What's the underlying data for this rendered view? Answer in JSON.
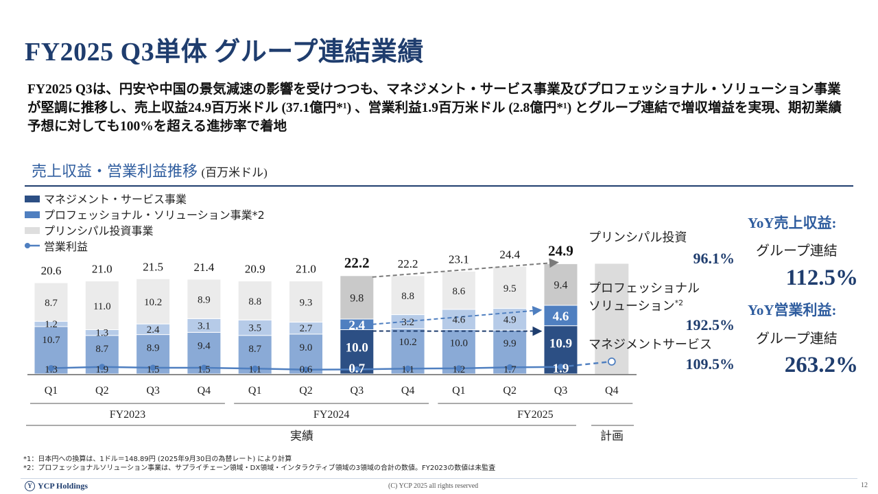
{
  "header": {
    "title": "FY2025 Q3単体 グループ連結業績",
    "summary": "FY2025 Q3は、円安や中国の景気減速の影響を受けつつも、マネジメント・サービス事業及びプロフェッショナル・ソリューション事業が堅調に推移し、売上収益24.9百万米ドル (37.1億円*¹) 、営業利益1.9百万米ドル (2.8億円*¹) とグループ連結で増収増益を実現、期初業績予想に対しても100%を超える進捗率で着地"
  },
  "section": {
    "title": "売上収益・営業利益推移",
    "unit": "(百万米ドル)"
  },
  "colors": {
    "management": "#8aaad6",
    "management_highlight": "#2c4f84",
    "professional": "#b6cbe8",
    "professional_highlight": "#4f7fc0",
    "principal": "#ebebeb",
    "principal_highlight": "#c9c9c9",
    "forecast": "#dcdcdc",
    "op_line": "#4f7fc0",
    "title": "#1f3d6e",
    "accent": "#2e5c9e"
  },
  "chart_data": {
    "type": "bar",
    "stacked": true,
    "title": "売上収益・営業利益推移 (百万米ドル)",
    "legend": [
      "マネジメント・サービス事業",
      "プロフェッショナル・ソリューション事業*2",
      "プリンシパル投資事業",
      "営業利益"
    ],
    "categories": [
      "Q1",
      "Q2",
      "Q3",
      "Q4",
      "Q1",
      "Q2",
      "Q3",
      "Q4",
      "Q1",
      "Q2",
      "Q3",
      "Q4"
    ],
    "years": [
      {
        "label": "FY2023",
        "start": 0,
        "end": 3
      },
      {
        "label": "FY2024",
        "start": 4,
        "end": 7
      },
      {
        "label": "FY2025",
        "start": 8,
        "end": 11
      }
    ],
    "periods": [
      {
        "label": "実績",
        "start": 0,
        "end": 10
      },
      {
        "label": "計画",
        "start": 11,
        "end": 11
      }
    ],
    "series": [
      {
        "name": "マネジメント・サービス事業",
        "values": [
          10.7,
          8.7,
          8.9,
          9.4,
          8.7,
          9.0,
          10.0,
          10.2,
          10.0,
          9.9,
          10.9,
          null
        ]
      },
      {
        "name": "プロフェッショナル・ソリューション事業",
        "values": [
          1.2,
          1.3,
          2.4,
          3.1,
          3.5,
          2.7,
          2.4,
          3.2,
          4.6,
          4.9,
          4.6,
          null
        ]
      },
      {
        "name": "プリンシパル投資事業",
        "values": [
          8.7,
          11.0,
          10.2,
          8.9,
          8.8,
          9.3,
          9.8,
          8.8,
          8.6,
          9.5,
          9.4,
          null
        ]
      }
    ],
    "forecast_total": 24.9,
    "totals": [
      "20.6",
      "21.0",
      "21.5",
      "21.4",
      "20.9",
      "21.0",
      "22.2",
      "22.2",
      "23.1",
      "24.4",
      "24.9",
      null
    ],
    "operating_profit": [
      1.3,
      1.9,
      1.5,
      1.5,
      1.1,
      0.6,
      0.7,
      1.1,
      1.2,
      1.7,
      1.9,
      1.9
    ],
    "highlight_indices": [
      6,
      10
    ],
    "ylim": [
      0,
      26
    ]
  },
  "growth": {
    "principal_label": "プリンシパル投資",
    "principal_value": "96.1%",
    "professional_label_1": "プロフェッショナル",
    "professional_label_2": "ソリューション",
    "professional_sup": "*2",
    "professional_value": "192.5%",
    "management_label": "マネジメントサービス",
    "management_value": "109.5%"
  },
  "yoy": {
    "revenue_title": "YoY売上収益:",
    "revenue_sub": "グループ連結",
    "revenue_value": "112.5%",
    "op_title": "YoY営業利益:",
    "op_sub": "グループ連結",
    "op_value": "263.2%"
  },
  "footnotes": {
    "note1": "*1：日本円への換算は、1ドル＝148.89円 (2025年9月30日の為替レート) により計算",
    "note2": "*2：プロフェッショナルソリューション事業は、サプライチェーン領域・DX領域・インタラクティブ領域の3領域の合計の数値。FY2023の数値は未監査"
  },
  "footer": {
    "logo_mark": "Y",
    "company": "YCP Holdings",
    "copyright": "(C) YCP 2025 all rights reserved",
    "page": "12"
  }
}
